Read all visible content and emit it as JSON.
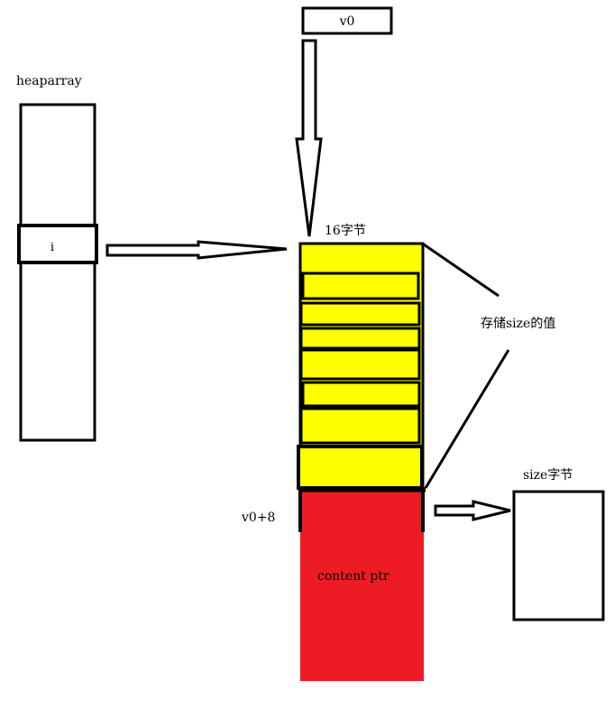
{
  "labels": {
    "v0": "v0",
    "heaparray": "heaparray",
    "index": "i",
    "bytes16": "16字节",
    "store_size": "存储size的值",
    "v0_plus_8": "v0+8",
    "content_ptr": "content ptr",
    "size_bytes": "size字节"
  },
  "colors": {
    "header_fill": "#ffff00",
    "content_fill": "#ed1c24",
    "outline": "#000000",
    "background": "#ffffff"
  }
}
